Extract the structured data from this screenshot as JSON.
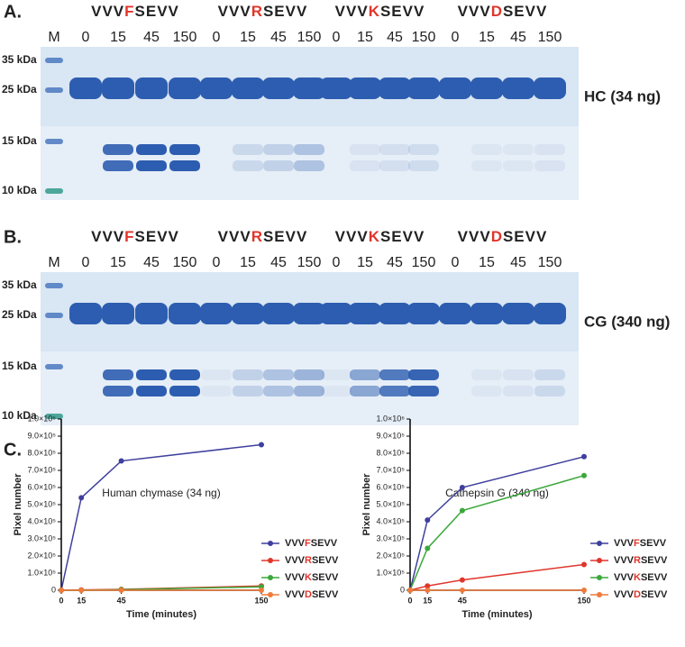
{
  "panels": [
    {
      "label": "A.",
      "marker": "M",
      "peptides": [
        "VVVFSEVV",
        "VVVRSEVV",
        "VVVKSEVV",
        "VVVDSEVV"
      ],
      "times": [
        "0",
        "15",
        "45",
        "150"
      ],
      "mw": [
        "35 kDa",
        "25 kDa",
        "15 kDa",
        "10 kDa"
      ],
      "enzyme": "HC (34 ng)"
    },
    {
      "label": "B.",
      "marker": "M",
      "peptides": [
        "VVVFSEVV",
        "VVVRSEVV",
        "VVVKSEVV",
        "VVVDSEVV"
      ],
      "times": [
        "0",
        "15",
        "45",
        "150"
      ],
      "mw": [
        "35 kDa",
        "25 kDa",
        "15 kDa",
        "10 kDa"
      ],
      "enzyme": "CG (340 ng)"
    }
  ],
  "panel_c_label": "C.",
  "chart_data": [
    {
      "type": "line",
      "title": "Human chymase (34 ng)",
      "x_label": "Time (minutes)",
      "y_label": "Pixel number",
      "x": [
        0,
        15,
        45,
        150
      ],
      "xlim": [
        0,
        150
      ],
      "xticks": [
        0,
        15,
        45,
        150
      ],
      "ylim": [
        0,
        1000000
      ],
      "yticks": [
        0,
        {
          "value": 100000,
          "label": "1.0×10⁵"
        },
        {
          "value": 200000,
          "label": "2.0×10⁵"
        },
        {
          "value": 300000,
          "label": "3.0×10⁵"
        },
        {
          "value": 400000,
          "label": "4.0×10⁵"
        },
        {
          "value": 500000,
          "label": "5.0×10⁵"
        },
        {
          "value": 600000,
          "label": "6.0×10⁵"
        },
        {
          "value": 700000,
          "label": "7.0×10⁵"
        },
        {
          "value": 800000,
          "label": "8.0×10⁵"
        },
        {
          "value": 900000,
          "label": "9.0×10⁵"
        },
        {
          "value": 1000000,
          "label": "1.0×10⁶"
        }
      ],
      "legend": "right",
      "series": [
        {
          "name": "VVVFSEVV",
          "color": "#3f3f9e",
          "values": [
            0,
            540000,
            755000,
            850000
          ]
        },
        {
          "name": "VVVRSEVV",
          "color": "#e0352b",
          "values": [
            0,
            2000,
            5000,
            25000
          ]
        },
        {
          "name": "VVVKSEVV",
          "color": "#3ba83b",
          "values": [
            0,
            0,
            3000,
            20000
          ]
        },
        {
          "name": "VVVDSEVV",
          "color": "#f07a3a",
          "values": [
            0,
            0,
            0,
            0
          ]
        }
      ]
    },
    {
      "type": "line",
      "title": "Cathepsin G (340 ng)",
      "x_label": "Time (minutes)",
      "y_label": "Pixel number",
      "x": [
        0,
        15,
        45,
        150
      ],
      "xlim": [
        0,
        150
      ],
      "xticks": [
        0,
        15,
        45,
        150
      ],
      "ylim": [
        0,
        1000000
      ],
      "yticks": [
        0,
        {
          "value": 100000,
          "label": "1.0×10⁵"
        },
        {
          "value": 200000,
          "label": "2.0×10⁵"
        },
        {
          "value": 300000,
          "label": "3.0×10⁵"
        },
        {
          "value": 400000,
          "label": "4.0×10⁵"
        },
        {
          "value": 500000,
          "label": "5.0×10⁵"
        },
        {
          "value": 600000,
          "label": "6.0×10⁵"
        },
        {
          "value": 700000,
          "label": "7.0×10⁵"
        },
        {
          "value": 800000,
          "label": "8.0×10⁵"
        },
        {
          "value": 900000,
          "label": "9.0×10⁵"
        },
        {
          "value": 1000000,
          "label": "1.0×10⁶"
        }
      ],
      "legend": "right",
      "series": [
        {
          "name": "VVVFSEVV",
          "color": "#3f3f9e",
          "values": [
            0,
            410000,
            600000,
            780000
          ]
        },
        {
          "name": "VVVRSEVV",
          "color": "#e0352b",
          "values": [
            0,
            25000,
            60000,
            150000
          ]
        },
        {
          "name": "VVVKSEVV",
          "color": "#3ba83b",
          "values": [
            0,
            245000,
            465000,
            670000
          ]
        },
        {
          "name": "VVVDSEVV",
          "color": "#f07a3a",
          "values": [
            0,
            0,
            0,
            0
          ]
        }
      ]
    }
  ]
}
